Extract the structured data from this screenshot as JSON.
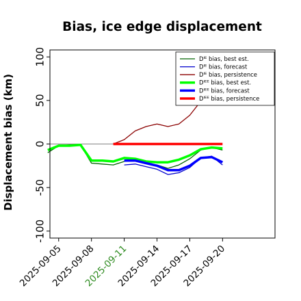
{
  "chart_data": {
    "type": "line",
    "title": "Bias, ice edge displacement",
    "xlabel": "",
    "ylabel": "Displacement bias (km)",
    "ylim": [
      -108,
      108
    ],
    "xlim": [
      -0.8,
      19.8
    ],
    "yticks": [
      100,
      50,
      0,
      -50,
      -100
    ],
    "xticks": [
      {
        "x": 0,
        "label": "2025-09-05",
        "color": "#000000"
      },
      {
        "x": 3,
        "label": "2025-09-08",
        "color": "#000000"
      },
      {
        "x": 6,
        "label": "2025-09-11",
        "color": "#2e8b20"
      },
      {
        "x": 9,
        "label": "2025-09-14",
        "color": "#000000"
      },
      {
        "x": 12,
        "label": "2025-09-17",
        "color": "#000000"
      },
      {
        "x": 15,
        "label": "2025-09-20",
        "color": "#000000"
      }
    ],
    "legend_position": "top-right",
    "zero_line": {
      "y": 0,
      "x": [
        -1,
        6
      ],
      "color": "#7f7f7f"
    },
    "series": [
      {
        "name": "Dᴵᴱ bias, best est.",
        "color": "#006400",
        "width": 1.3,
        "x": [
          -1,
          0,
          1,
          2,
          3,
          4,
          5,
          6,
          7,
          8,
          9,
          10,
          11,
          12,
          13,
          14,
          15
        ],
        "y": [
          -10,
          -2,
          -1,
          -1,
          -22,
          -23,
          -24,
          -20,
          -19,
          -22,
          -24,
          -28,
          -24,
          -17,
          -7,
          -4,
          -7
        ]
      },
      {
        "name": "Dᴵᴱ bias, forecast",
        "color": "#0000cd",
        "width": 1.3,
        "x": [
          6,
          7,
          8,
          9,
          10,
          11,
          12,
          13,
          14,
          15
        ],
        "y": [
          -24,
          -23,
          -26,
          -29,
          -35,
          -33,
          -27,
          -16,
          -14,
          -24
        ]
      },
      {
        "name": "Dᴵᴱ bias, persistence",
        "color": "#8b0000",
        "width": 1.3,
        "x": [
          5,
          6,
          7,
          8,
          9,
          10,
          11,
          12,
          13
        ],
        "y": [
          0,
          5,
          15,
          20,
          23,
          20,
          23,
          33,
          49
        ]
      },
      {
        "name": "Dᴵᴱᴱ bias, best est.",
        "color": "#00ff00",
        "width": 3.5,
        "x": [
          -1,
          0,
          1,
          2,
          3,
          4,
          5,
          6,
          7,
          8,
          9,
          10,
          11,
          12,
          13,
          14,
          15
        ],
        "y": [
          -7,
          -2,
          -2,
          -1,
          -19,
          -19,
          -20,
          -16,
          -17,
          -20,
          -21,
          -21,
          -18,
          -13,
          -6,
          -4,
          -5
        ]
      },
      {
        "name": "Dᴵᴱᴱ bias, forecast",
        "color": "#0000ff",
        "width": 3.5,
        "x": [
          6,
          7,
          8,
          9,
          10,
          11,
          12,
          13,
          14,
          15
        ],
        "y": [
          -19,
          -19,
          -22,
          -25,
          -30,
          -30,
          -25,
          -16,
          -15,
          -21
        ]
      },
      {
        "name": "Dᴵᴱᴱ bias, persistence",
        "color": "#ff0000",
        "width": 3.5,
        "x": [
          5,
          6,
          7,
          8,
          9,
          10,
          11,
          12,
          13,
          14,
          15
        ],
        "y": [
          0,
          0,
          0,
          0,
          0,
          0,
          0,
          0,
          0,
          0,
          0
        ]
      }
    ]
  }
}
